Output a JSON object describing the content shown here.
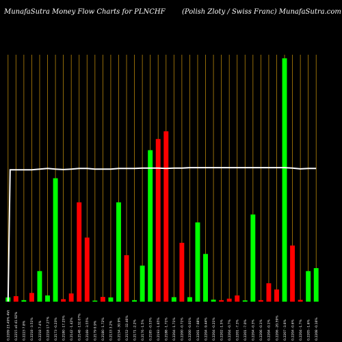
{
  "header": {
    "left_title": "MunafaSutra  Money Flow  Charts for PLNCHF",
    "right_title": "(Polish Zloty / Swiss Franc) MunafaSutra.com"
  },
  "colors": {
    "background": "#000000",
    "up": "#00ff00",
    "down": "#ff0000",
    "gridline": "#b8860b",
    "price_line": "#ffffff",
    "text": "#ffffff"
  },
  "chart_data": {
    "type": "bar",
    "grid": "vertical",
    "bar_max": 100,
    "price_range": [
      0,
      100
    ],
    "bars": [
      {
        "label": "0.2209 23.49% 4Vt",
        "value": 1.7,
        "dir": "up"
      },
      {
        "label": "0.2215 x0 41.92%",
        "value": 2.2,
        "dir": "down"
      },
      {
        "label": "0.2223 7.8%",
        "value": 0.6,
        "dir": "up"
      },
      {
        "label": "0.2218 -3.51%",
        "value": 3.5,
        "dir": "down"
      },
      {
        "label": "0.2218 7.4%",
        "value": 12.3,
        "dir": "up"
      },
      {
        "label": "0.2218 17.27%",
        "value": 2.5,
        "dir": "up"
      },
      {
        "label": "0.2173 -0.23%",
        "value": 49.7,
        "dir": "up"
      },
      {
        "label": "0.2180 -17.25%",
        "value": 1.0,
        "dir": "down"
      },
      {
        "label": "0.2142 -1.42%",
        "value": 3.3,
        "dir": "down"
      },
      {
        "label": "0.2148 -132.07%",
        "value": 40.0,
        "dir": "down"
      },
      {
        "label": "0.2169 -3.55%",
        "value": 25.8,
        "dir": "down"
      },
      {
        "label": "0.2179 0.9%",
        "value": 0.4,
        "dir": "up"
      },
      {
        "label": "0.2180 -1.72%",
        "value": 1.9,
        "dir": "down"
      },
      {
        "label": "0.2133 3.2%",
        "value": 1.7,
        "dir": "up"
      },
      {
        "label": "0.2154 -30.9%",
        "value": 40.0,
        "dir": "up"
      },
      {
        "label": "0.2152 -32.46%",
        "value": 18.7,
        "dir": "down"
      },
      {
        "label": "0.2171 -2.2%",
        "value": 0.6,
        "dir": "up"
      },
      {
        "label": "0.2176 -1.5%",
        "value": 14.5,
        "dir": "up"
      },
      {
        "label": "0.2185 -0.53%",
        "value": 61.0,
        "dir": "up"
      },
      {
        "label": "0.2193 -1.65%",
        "value": 65.5,
        "dir": "down"
      },
      {
        "label": "0.2188 -1.71%",
        "value": 68.6,
        "dir": "down"
      },
      {
        "label": "0.2204 -1.71%",
        "value": 1.8,
        "dir": "up"
      },
      {
        "label": "0.2200 -0.71%",
        "value": 23.7,
        "dir": "down"
      },
      {
        "label": "0.2200 -0.01%",
        "value": 1.8,
        "dir": "up"
      },
      {
        "label": "0.2201 -7.68%",
        "value": 31.9,
        "dir": "up"
      },
      {
        "label": "0.2204 -9.44%",
        "value": 19.2,
        "dir": "up"
      },
      {
        "label": "0.2204 -0.21%",
        "value": 0.8,
        "dir": "up"
      },
      {
        "label": "0.2202 -1.5%",
        "value": 0.6,
        "dir": "down"
      },
      {
        "label": "0.2204 -0.7%",
        "value": 1.2,
        "dir": "down"
      },
      {
        "label": "0.2201 -7.3%",
        "value": 2.5,
        "dir": "down"
      },
      {
        "label": "0.2201 -7.0%",
        "value": 0.5,
        "dir": "up"
      },
      {
        "label": "0.2204 -0.3%",
        "value": 35.1,
        "dir": "up"
      },
      {
        "label": "0.2206 -0.1%",
        "value": 0.6,
        "dir": "down"
      },
      {
        "label": "0.2204 -0.1%",
        "value": 7.4,
        "dir": "down"
      },
      {
        "label": "0.2206 -20.59%",
        "value": 4.9,
        "dir": "down"
      },
      {
        "label": "0.2207 -3.6%",
        "value": 98.0,
        "dir": "up"
      },
      {
        "label": "0.2204 -0.6%",
        "value": 22.6,
        "dir": "down"
      },
      {
        "label": "0.2204 -1.7%",
        "value": 0.7,
        "dir": "down"
      },
      {
        "label": "0.2205 -1.6%",
        "value": 12.3,
        "dir": "up"
      },
      {
        "label": "0.2208 -0.16%",
        "value": 13.5,
        "dir": "up"
      }
    ],
    "price_line": [
      0,
      62,
      62,
      62,
      62,
      62.3,
      62.6,
      62.3,
      62.1,
      62.3,
      62.6,
      62.6,
      62.3,
      62.3,
      62.3,
      62.6,
      62.6,
      62.6,
      62.8,
      62.8,
      62.8,
      62.6,
      62.8,
      62.8,
      63,
      63,
      63,
      63,
      63,
      63,
      63,
      63,
      63,
      63,
      63,
      63,
      63,
      62.8,
      62.4,
      62.6,
      62.6
    ]
  }
}
